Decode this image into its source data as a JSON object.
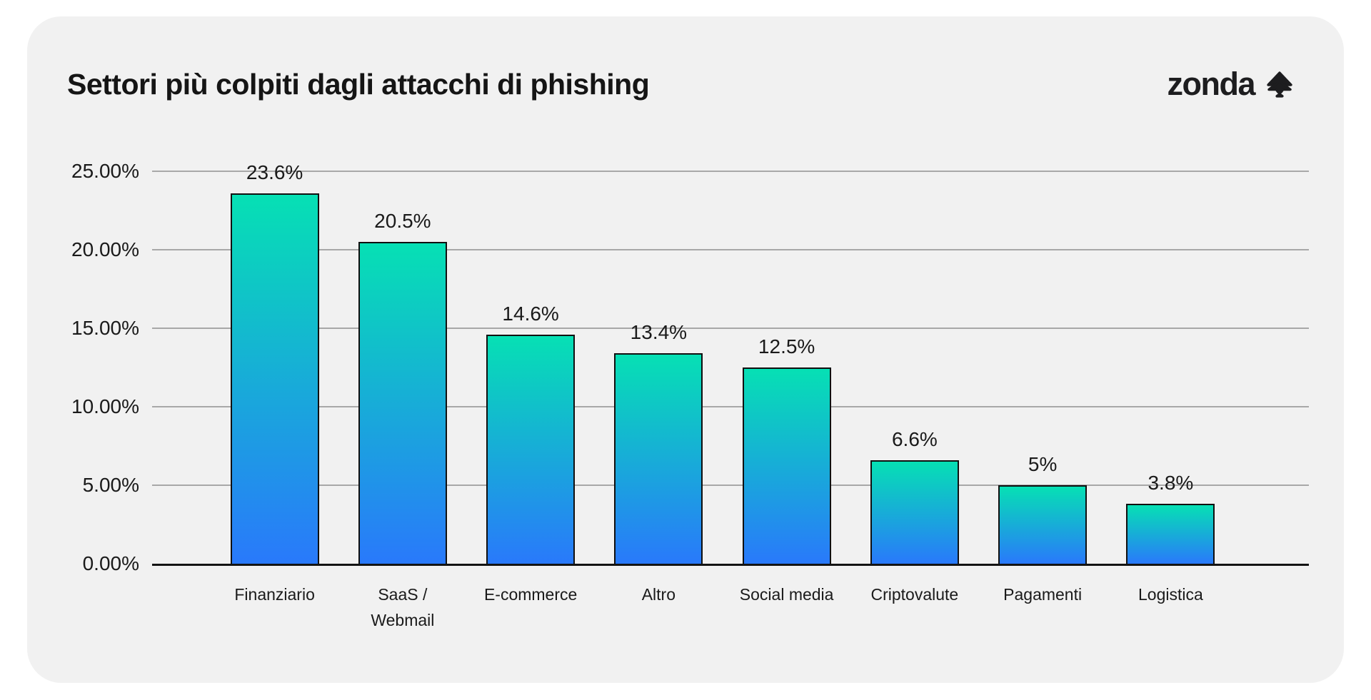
{
  "page": {
    "background": "#ffffff",
    "card_background": "#f1f1f1"
  },
  "header": {
    "title": "Settori più colpiti dagli attacchi di phishing",
    "brand": "zonda",
    "brand_icon": "zonda-tree-arrow-icon",
    "brand_color": "#1d1d1f"
  },
  "chart_data": {
    "type": "bar",
    "title": "Settori più colpiti dagli attacchi di phishing",
    "categories": [
      "Finanziario",
      "SaaS / Webmail",
      "E-commerce",
      "Altro",
      "Social media",
      "Criptovalute",
      "Pagamenti",
      "Logistica"
    ],
    "values": [
      23.6,
      20.5,
      14.6,
      13.4,
      12.5,
      6.6,
      5,
      3.8
    ],
    "value_labels": [
      "23.6%",
      "20.5%",
      "14.6%",
      "13.4%",
      "12.5%",
      "6.6%",
      "5%",
      "3.8%"
    ],
    "y_tick_labels": [
      "25.00%",
      "20.00%",
      "15.00%",
      "10.00%",
      "5.00%",
      "0.00%"
    ],
    "ylim": [
      0,
      25
    ],
    "xlabel": "",
    "ylabel": "",
    "grid": "horizontal",
    "legend": "none",
    "bar_gradient_top": "#06e0b4",
    "bar_gradient_bottom": "#2979fb",
    "bar_border_color": "#101010",
    "grid_color": "#a8a8a8",
    "baseline_color": "#141414",
    "text_color": "#1a1a1a"
  }
}
